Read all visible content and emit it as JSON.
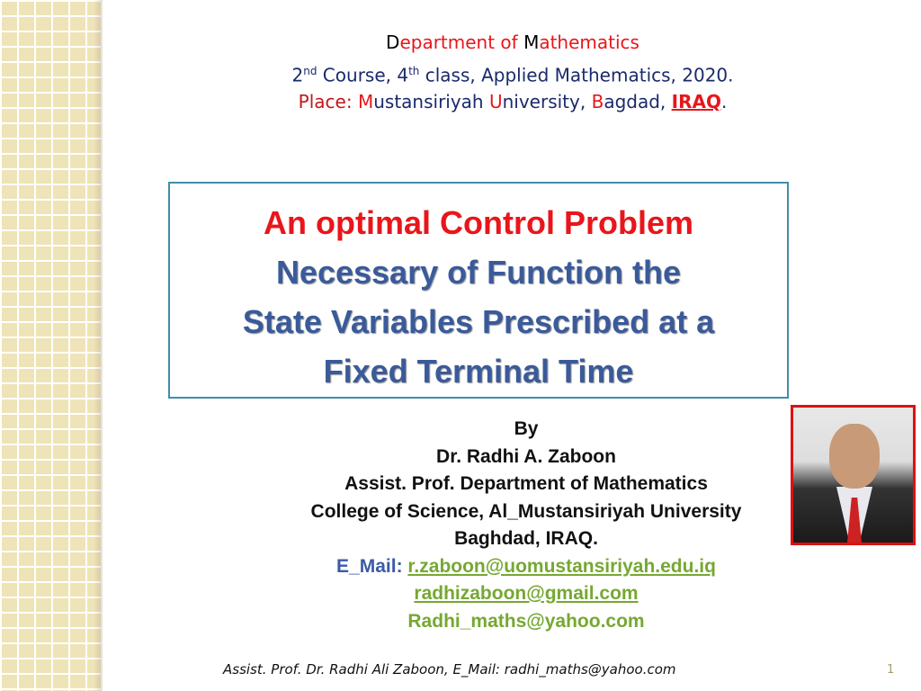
{
  "header": {
    "line1": {
      "D": "D",
      "rest1": "epartment of ",
      "M": "M",
      "rest2": "athematics"
    },
    "line2": {
      "a": "2",
      "sup1": "nd",
      "b": " Course, 4",
      "sup2": "th",
      "c": " class, Applied Mathematics, 2020."
    },
    "line3": {
      "place": "Place: ",
      "M": "M",
      "ustans": "ustansiriyah ",
      "U": "U",
      "niv": "niversity, ",
      "B": "B",
      "agdad": "agdad, ",
      "iraq": "IRAQ",
      "dot": "."
    }
  },
  "title": {
    "line1": "An optimal Control Problem",
    "line2": "Necessary of Function the",
    "line3": "State Variables Prescribed at a",
    "line4": "Fixed Terminal Time"
  },
  "author": {
    "by": "By",
    "name": "Dr. Radhi  A.  Zaboon",
    "position": "Assist. Prof. Department of Mathematics",
    "college": "College of Science,  Al_Mustansiriyah University",
    "city": "Baghdad, IRAQ.",
    "email_label": "E_Mail:",
    "email1": "r.zaboon@uomustansiriyah.edu.iq",
    "email2": "radhizaboon@gmail.com",
    "email3": "Radhi_maths@yahoo.com"
  },
  "footer": {
    "text": "Assist. Prof. Dr. Radhi Ali Zaboon, E_Mail: radhi_maths@yahoo.com",
    "page": "1"
  },
  "colors": {
    "red": "#e8161b",
    "navy": "#1a2a6c",
    "title_blue": "#3a5a9a",
    "green": "#76a832",
    "border": "#3f8fa8"
  }
}
